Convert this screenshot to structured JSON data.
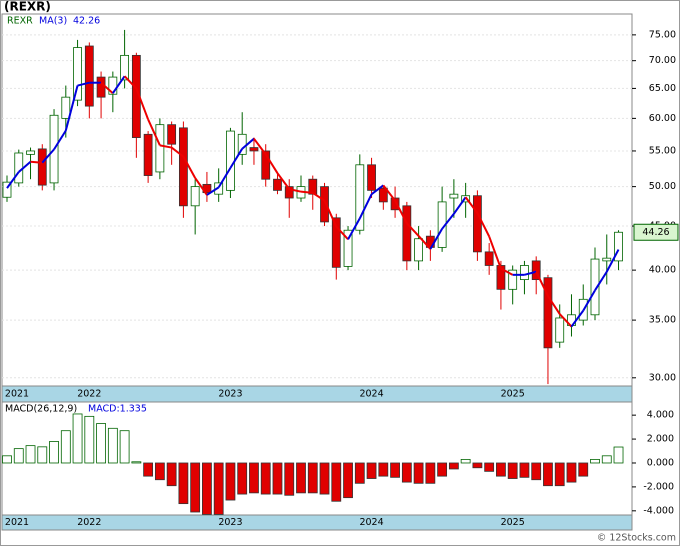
{
  "chart_data": [
    {
      "type": "candlestick",
      "title": "(REXR)",
      "name": "REXR",
      "categories": [
        "2021",
        null,
        null,
        null,
        null,
        null,
        null,
        "2022",
        null,
        null,
        null,
        null,
        null,
        null,
        null,
        null,
        null,
        null,
        null,
        "2023",
        null,
        null,
        null,
        null,
        null,
        null,
        null,
        null,
        null,
        null,
        null,
        "2024",
        null,
        null,
        null,
        null,
        null,
        null,
        null,
        null,
        null,
        null,
        null,
        "2025",
        null,
        null,
        null,
        null,
        null,
        null,
        null,
        null,
        null
      ],
      "open": [
        48.6,
        50.5,
        54.5,
        55.3,
        50.5,
        60,
        63,
        72.8,
        67,
        64,
        66.5,
        71,
        57.5,
        52,
        59,
        58.5,
        47.5,
        50.3,
        49,
        49.5,
        54.5,
        55.5,
        55,
        51,
        50,
        48.5,
        51,
        50,
        46,
        40.4,
        44.5,
        53,
        49.8,
        48.5,
        47.5,
        41,
        43.8,
        42.5,
        48.5,
        48,
        48.8,
        42,
        40.5,
        38,
        39,
        41,
        39.2,
        33,
        34.5,
        35,
        35.5,
        41,
        41
      ],
      "high": [
        51.5,
        55.2,
        55.5,
        56,
        61.5,
        65.5,
        74,
        73.5,
        68,
        68,
        76,
        71.5,
        58,
        60,
        59.5,
        59.5,
        51,
        52,
        52.5,
        58.5,
        61,
        57,
        56,
        52,
        51,
        51.5,
        51.5,
        50.5,
        46.5,
        45,
        54.5,
        54,
        50,
        50,
        48,
        45,
        44.5,
        50,
        51,
        50.5,
        49.5,
        43,
        41,
        40.5,
        41,
        41.5,
        39.5,
        36.5,
        37.5,
        38.5,
        42.5,
        44,
        44.5
      ],
      "low": [
        48,
        50,
        51,
        49.5,
        49.5,
        57,
        62,
        60,
        60,
        61,
        65,
        54,
        50.5,
        51,
        53,
        46,
        44,
        48,
        48,
        48.5,
        53,
        53,
        50,
        49,
        46,
        48,
        47,
        45,
        39,
        40,
        44,
        48.5,
        47,
        46,
        40,
        40,
        41,
        42,
        46,
        46,
        41,
        39.5,
        36,
        36.5,
        37.5,
        37.5,
        29.5,
        32.5,
        33.5,
        34.5,
        35,
        38.5,
        40
      ],
      "close": [
        50.6,
        54.7,
        55,
        50.2,
        60.5,
        63.5,
        72.5,
        62,
        63.5,
        67,
        71,
        57,
        51.5,
        59,
        56,
        47.5,
        50,
        49.2,
        50.5,
        58,
        57.5,
        55,
        51,
        49.5,
        48.5,
        50,
        49,
        45.5,
        40.3,
        44.5,
        53,
        49.5,
        48,
        47,
        41,
        43.5,
        42.5,
        48,
        49,
        48.8,
        42,
        40.5,
        38,
        40,
        40.5,
        39,
        32.5,
        35.2,
        35.5,
        37,
        41.2,
        41.3,
        44.26
      ],
      "up_color": "#006400",
      "down_color": "#e00000",
      "ma": {
        "name": "MA(3)",
        "up_color": "#0000dd",
        "down_color": "#ee0000",
        "values": [
          49.8,
          52,
          53.43,
          53.3,
          55.23,
          58.07,
          65.5,
          66,
          66,
          64.17,
          67.17,
          65,
          59.83,
          55.83,
          55.5,
          54.17,
          51.17,
          48.9,
          49.9,
          52.57,
          55.33,
          56.83,
          54.5,
          51.83,
          49.67,
          49.33,
          49.17,
          48.17,
          44.93,
          43.43,
          45.93,
          49,
          50.17,
          48.17,
          45.33,
          43.83,
          42.33,
          44.67,
          46.5,
          48.6,
          46.6,
          43.77,
          40.17,
          39.5,
          39.5,
          39.83,
          37.33,
          35.57,
          34.4,
          35.9,
          37.9,
          39.83,
          42.26
        ]
      },
      "log_scale": true,
      "ylim": [
        29.35,
        79.3
      ],
      "yticks": [
        {
          "value": 30,
          "label": "30.00"
        },
        {
          "value": 35,
          "label": "35.00"
        },
        {
          "value": 40,
          "label": "40.00"
        },
        {
          "value": 45,
          "label": "45.00"
        },
        {
          "value": 50,
          "label": "50.00"
        },
        {
          "value": 55,
          "label": "55.00"
        },
        {
          "value": 60,
          "label": "60.00"
        },
        {
          "value": 65,
          "label": "65.00"
        },
        {
          "value": 70,
          "label": "70.00"
        },
        {
          "value": 75,
          "label": "75.00"
        }
      ],
      "grid": true
    },
    {
      "type": "bar",
      "title": "MACD(26,12,9)",
      "label": "MACD:1.335",
      "categories": [
        "2021",
        null,
        null,
        null,
        null,
        null,
        null,
        "2022",
        null,
        null,
        null,
        null,
        null,
        null,
        null,
        null,
        null,
        null,
        null,
        "2023",
        null,
        null,
        null,
        null,
        null,
        null,
        null,
        null,
        null,
        null,
        null,
        "2024",
        null,
        null,
        null,
        null,
        null,
        null,
        null,
        null,
        null,
        null,
        null,
        "2025",
        null,
        null,
        null,
        null,
        null,
        null,
        null,
        null,
        null
      ],
      "values": [
        0.6,
        1.2,
        1.45,
        1.35,
        1.8,
        2.7,
        4.1,
        3.9,
        3.3,
        2.9,
        2.7,
        0.1,
        -1.1,
        -1.4,
        -1.9,
        -3.4,
        -4.1,
        -4.3,
        -4.3,
        -3.1,
        -2.6,
        -2.5,
        -2.6,
        -2.6,
        -2.7,
        -2.5,
        -2.5,
        -2.6,
        -3.2,
        -2.9,
        -1.7,
        -1.3,
        -1.1,
        -1.2,
        -1.6,
        -1.7,
        -1.7,
        -1.1,
        -0.5,
        0.3,
        -0.4,
        -0.7,
        -1.1,
        -1.3,
        -1.2,
        -1.4,
        -1.9,
        -1.9,
        -1.6,
        -1.1,
        0.3,
        0.6,
        1.335
      ],
      "up_color": "#006400",
      "down_color": "#e00000",
      "ylim": [
        -4.35,
        5.1
      ],
      "yticks": [
        {
          "value": 4,
          "label": "4.000"
        },
        {
          "value": 2,
          "label": "2.000"
        },
        {
          "value": 0,
          "label": "0.000"
        },
        {
          "value": -2,
          "label": "-2.000"
        },
        {
          "value": -4,
          "label": "-4.000"
        }
      ]
    }
  ],
  "footer": "© 12Stocks.com"
}
